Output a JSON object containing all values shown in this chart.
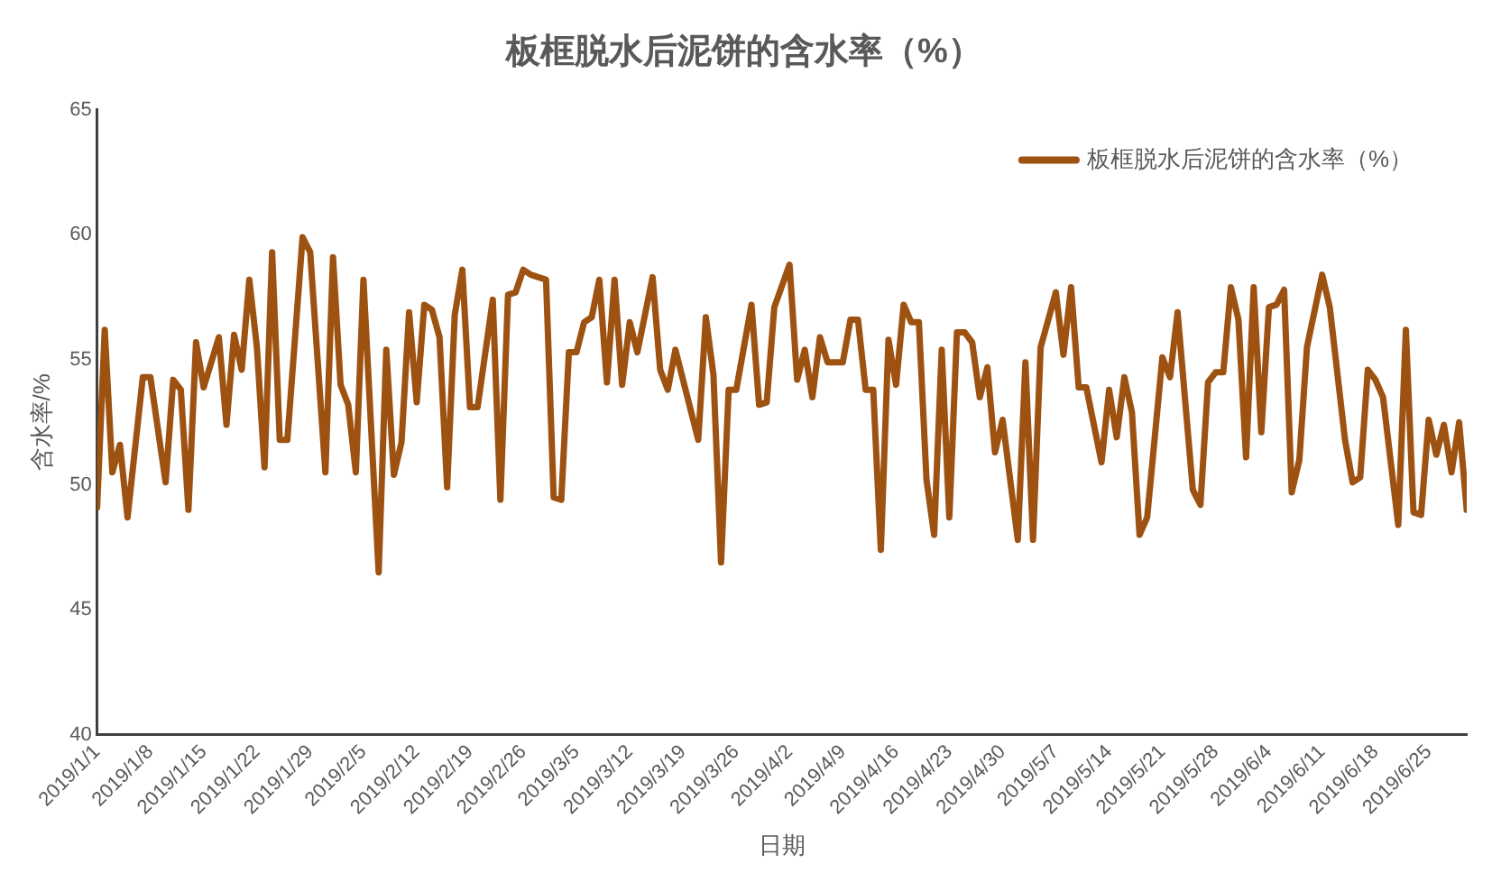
{
  "chart_data": {
    "type": "line",
    "title": "板框脱水后泥饼的含水率（%）",
    "xlabel": "日期",
    "ylabel": "含水率/%",
    "x": [
      "2019-01-01",
      "2019-01-02",
      "2019-01-03",
      "2019-01-04",
      "2019-01-05",
      "2019-01-07",
      "2019-01-08",
      "2019-01-10",
      "2019-01-11",
      "2019-01-12",
      "2019-01-13",
      "2019-01-14",
      "2019-01-15",
      "2019-01-17",
      "2019-01-18",
      "2019-01-19",
      "2019-01-20",
      "2019-01-21",
      "2019-01-22",
      "2019-01-23",
      "2019-01-24",
      "2019-01-25",
      "2019-01-26",
      "2019-01-28",
      "2019-01-29",
      "2019-01-31",
      "2019-02-01",
      "2019-02-02",
      "2019-02-03",
      "2019-02-04",
      "2019-02-05",
      "2019-02-07",
      "2019-02-08",
      "2019-02-09",
      "2019-02-10",
      "2019-02-11",
      "2019-02-12",
      "2019-02-13",
      "2019-02-14",
      "2019-02-15",
      "2019-02-16",
      "2019-02-17",
      "2019-02-18",
      "2019-02-19",
      "2019-02-20",
      "2019-02-22",
      "2019-02-23",
      "2019-02-24",
      "2019-02-25",
      "2019-02-26",
      "2019-02-27",
      "2019-03-01",
      "2019-03-02",
      "2019-03-03",
      "2019-03-04",
      "2019-03-05",
      "2019-03-06",
      "2019-03-07",
      "2019-03-08",
      "2019-03-09",
      "2019-03-10",
      "2019-03-11",
      "2019-03-12",
      "2019-03-13",
      "2019-03-15",
      "2019-03-16",
      "2019-03-17",
      "2019-03-18",
      "2019-03-21",
      "2019-03-22",
      "2019-03-23",
      "2019-03-24",
      "2019-03-25",
      "2019-03-26",
      "2019-03-28",
      "2019-03-29",
      "2019-03-30",
      "2019-03-31",
      "2019-04-02",
      "2019-04-03",
      "2019-04-04",
      "2019-04-05",
      "2019-04-06",
      "2019-04-07",
      "2019-04-09",
      "2019-04-10",
      "2019-04-11",
      "2019-04-12",
      "2019-04-13",
      "2019-04-14",
      "2019-04-15",
      "2019-04-16",
      "2019-04-17",
      "2019-04-18",
      "2019-04-19",
      "2019-04-20",
      "2019-04-21",
      "2019-04-22",
      "2019-04-23",
      "2019-04-24",
      "2019-04-25",
      "2019-04-26",
      "2019-04-27",
      "2019-04-28",
      "2019-04-29",
      "2019-04-30",
      "2019-05-02",
      "2019-05-03",
      "2019-05-04",
      "2019-05-05",
      "2019-05-07",
      "2019-05-08",
      "2019-05-09",
      "2019-05-10",
      "2019-05-11",
      "2019-05-13",
      "2019-05-14",
      "2019-05-15",
      "2019-05-16",
      "2019-05-17",
      "2019-05-18",
      "2019-05-19",
      "2019-05-21",
      "2019-05-22",
      "2019-05-23",
      "2019-05-25",
      "2019-05-26",
      "2019-05-27",
      "2019-05-28",
      "2019-05-29",
      "2019-05-30",
      "2019-05-31",
      "2019-06-01",
      "2019-06-02",
      "2019-06-03",
      "2019-06-04",
      "2019-06-05",
      "2019-06-06",
      "2019-06-07",
      "2019-06-08",
      "2019-06-09",
      "2019-06-11",
      "2019-06-12",
      "2019-06-14",
      "2019-06-15",
      "2019-06-16",
      "2019-06-17",
      "2019-06-18",
      "2019-06-19",
      "2019-06-21",
      "2019-06-22",
      "2019-06-23",
      "2019-06-24",
      "2019-06-25",
      "2019-06-26",
      "2019-06-27",
      "2019-06-28",
      "2019-06-29",
      "2019-06-30"
    ],
    "series": [
      {
        "name": "板框脱水后泥饼的含水率（%）",
        "color": "#9e5212",
        "values": [
          49.1,
          56.2,
          50.5,
          51.6,
          48.7,
          54.3,
          54.3,
          50.1,
          54.2,
          53.8,
          49.0,
          55.7,
          53.9,
          55.9,
          52.4,
          56.0,
          54.6,
          58.2,
          55.5,
          50.7,
          59.3,
          51.8,
          51.8,
          59.9,
          59.3,
          50.5,
          59.1,
          54.0,
          53.2,
          50.5,
          58.2,
          46.5,
          55.4,
          50.4,
          51.7,
          56.9,
          53.3,
          57.2,
          57.0,
          55.9,
          49.9,
          56.8,
          58.6,
          53.1,
          53.1,
          57.4,
          49.4,
          57.6,
          57.7,
          58.6,
          58.4,
          58.2,
          49.5,
          49.4,
          55.3,
          55.3,
          56.5,
          56.7,
          58.2,
          54.1,
          58.2,
          54.0,
          56.5,
          55.3,
          58.3,
          54.6,
          53.8,
          55.4,
          51.8,
          56.7,
          54.4,
          46.9,
          53.8,
          53.8,
          57.2,
          53.2,
          53.3,
          57.1,
          58.8,
          54.2,
          55.4,
          53.5,
          55.9,
          54.9,
          54.9,
          56.6,
          56.6,
          53.8,
          53.8,
          47.4,
          55.8,
          54.0,
          57.2,
          56.5,
          56.5,
          50.2,
          48.0,
          55.4,
          48.7,
          56.1,
          56.1,
          55.7,
          53.5,
          54.7,
          51.3,
          52.6,
          47.8,
          54.9,
          47.8,
          55.5,
          57.7,
          55.2,
          57.9,
          53.9,
          53.9,
          50.9,
          53.8,
          51.9,
          54.3,
          52.9,
          48.0,
          48.7,
          55.1,
          54.3,
          56.9,
          49.8,
          49.2,
          54.1,
          54.5,
          54.5,
          57.9,
          56.6,
          51.1,
          57.9,
          52.1,
          57.1,
          57.2,
          57.8,
          49.7,
          51.0,
          55.5,
          58.4,
          57.1,
          51.8,
          50.1,
          50.3,
          54.6,
          54.2,
          53.5,
          48.4,
          56.2,
          48.9,
          48.8,
          52.6,
          51.2,
          52.4,
          50.5,
          52.5,
          49.0
        ]
      }
    ],
    "xlim": [
      "2019-01-01",
      "2019-06-30"
    ],
    "xticks": [
      {
        "value": "2019-01-01",
        "label": "2019/1/1"
      },
      {
        "value": "2019-01-08",
        "label": "2019/1/8"
      },
      {
        "value": "2019-01-15",
        "label": "2019/1/15"
      },
      {
        "value": "2019-01-22",
        "label": "2019/1/22"
      },
      {
        "value": "2019-01-29",
        "label": "2019/1/29"
      },
      {
        "value": "2019-02-05",
        "label": "2019/2/5"
      },
      {
        "value": "2019-02-12",
        "label": "2019/2/12"
      },
      {
        "value": "2019-02-19",
        "label": "2019/2/19"
      },
      {
        "value": "2019-02-26",
        "label": "2019/2/26"
      },
      {
        "value": "2019-03-05",
        "label": "2019/3/5"
      },
      {
        "value": "2019-03-12",
        "label": "2019/3/12"
      },
      {
        "value": "2019-03-19",
        "label": "2019/3/19"
      },
      {
        "value": "2019-03-26",
        "label": "2019/3/26"
      },
      {
        "value": "2019-04-02",
        "label": "2019/4/2"
      },
      {
        "value": "2019-04-09",
        "label": "2019/4/9"
      },
      {
        "value": "2019-04-16",
        "label": "2019/4/16"
      },
      {
        "value": "2019-04-23",
        "label": "2019/4/23"
      },
      {
        "value": "2019-04-30",
        "label": "2019/4/30"
      },
      {
        "value": "2019-05-07",
        "label": "2019/5/7"
      },
      {
        "value": "2019-05-14",
        "label": "2019/5/14"
      },
      {
        "value": "2019-05-21",
        "label": "2019/5/21"
      },
      {
        "value": "2019-05-28",
        "label": "2019/5/28"
      },
      {
        "value": "2019-06-04",
        "label": "2019/6/4"
      },
      {
        "value": "2019-06-11",
        "label": "2019/6/11"
      },
      {
        "value": "2019-06-18",
        "label": "2019/6/18"
      },
      {
        "value": "2019-06-25",
        "label": "2019/6/25"
      }
    ],
    "ylim": [
      40,
      65
    ],
    "yticks": [
      40,
      45,
      50,
      55,
      60,
      65
    ],
    "grid": false,
    "legend": "top right",
    "marker": "none",
    "line_style": "solid"
  }
}
